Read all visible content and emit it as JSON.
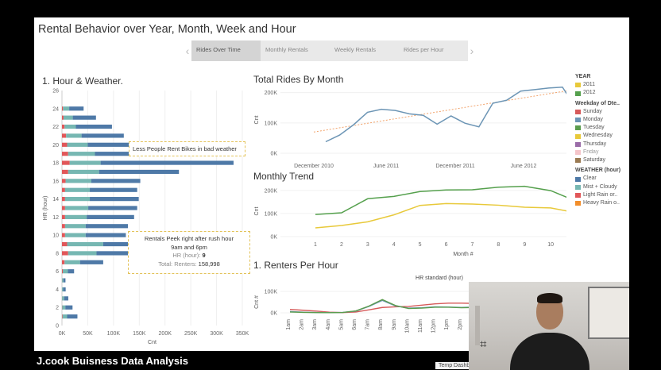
{
  "dashboard": {
    "title": "Rental Behavior over Year, Month, Week and Hour",
    "tabs": [
      {
        "label": "Rides Over Time",
        "active": true
      },
      {
        "label": "Monthly Rentals",
        "active": false
      },
      {
        "label": "Weekly Rentals",
        "active": false
      },
      {
        "label": "Rides per Hour",
        "active": false
      }
    ]
  },
  "sections": {
    "hour_weather": "1. Hour & Weather.",
    "total_rides": "Total Rides By Month",
    "monthly_trend": "Monthly Trend",
    "renters_per_hour": "1. Renters Per Hour"
  },
  "legend": {
    "year_title": "YEAR",
    "years": [
      {
        "label": "2011",
        "color": "#e8c93a"
      },
      {
        "label": "2012",
        "color": "#55a04d"
      }
    ],
    "weekday_title": "Weekday of Dte..",
    "weekdays": [
      {
        "label": "Sunday",
        "color": "#d65a5a"
      },
      {
        "label": "Monday",
        "color": "#6c95b5"
      },
      {
        "label": "Tuesday",
        "color": "#5b9c4d"
      },
      {
        "label": "Wednesday",
        "color": "#e8c93a"
      },
      {
        "label": "Thursday",
        "color": "#9a6ca8"
      },
      {
        "label": "Friday",
        "color": "#f0a0a8"
      },
      {
        "label": "Saturday",
        "color": "#9a7a52"
      }
    ],
    "weather_title": "WEATHER (hour)",
    "weather": [
      {
        "label": "Clear",
        "color": "#4e79a7"
      },
      {
        "label": "Mist + Cloudy",
        "color": "#76b7b2"
      },
      {
        "label": "Light Rain or..",
        "color": "#e15759"
      },
      {
        "label": "Heavy Rain o..",
        "color": "#f28e2b"
      }
    ]
  },
  "tooltips": {
    "weather_note": "Less People Rent Bikes in bad weather",
    "rush_note_line1": "Rentals Peek right after rush hour",
    "rush_note_line2": "9am and 6pm",
    "hr_label": "HR (hour):",
    "hr_value": "9",
    "total_label": "Total: Renters:",
    "total_value": "158,998"
  },
  "chart_data": [
    {
      "type": "bar",
      "orientation": "horizontal",
      "stacked": true,
      "title": "1. Hour & Weather.",
      "ylabel": "HR (hour)",
      "xlabel": "Cnt",
      "xlim": [
        0,
        350000
      ],
      "x_ticks": [
        "0K",
        "50K",
        "100K",
        "150K",
        "200K",
        "250K",
        "300K",
        "350K"
      ],
      "y_ticks": [
        "0",
        "2",
        "4",
        "6",
        "8",
        "10",
        "12",
        "14",
        "16",
        "18",
        "20",
        "22",
        "24",
        "26"
      ],
      "categories": [
        1,
        2,
        3,
        4,
        5,
        6,
        7,
        8,
        9,
        10,
        11,
        12,
        13,
        14,
        15,
        16,
        17,
        18,
        19,
        20,
        21,
        22,
        23,
        24
      ],
      "series": [
        {
          "name": "Light Rain or..",
          "values": [
            1000,
            500,
            300,
            200,
            300,
            1500,
            5000,
            12000,
            10000,
            6000,
            6000,
            6000,
            6000,
            6000,
            6000,
            7000,
            12000,
            15000,
            12000,
            10000,
            8000,
            5000,
            3000,
            2000
          ]
        },
        {
          "name": "Mist + Cloudy",
          "values": [
            9000,
            6000,
            4000,
            2000,
            2500,
            10000,
            30000,
            55000,
            70000,
            40000,
            40000,
            42000,
            45000,
            48000,
            48000,
            50000,
            60000,
            60000,
            52000,
            40000,
            30000,
            22000,
            18000,
            12000
          ]
        },
        {
          "name": "Clear",
          "values": [
            20000,
            14000,
            8000,
            5000,
            4000,
            12000,
            45000,
            90000,
            79000,
            78000,
            82000,
            92000,
            95000,
            95000,
            92000,
            95000,
            155000,
            258000,
            165000,
            105000,
            82000,
            70000,
            45000,
            28000
          ]
        }
      ]
    },
    {
      "type": "line",
      "title": "Total Rides By Month",
      "xlabel": "Month of Dteday",
      "ylabel": "Cnt",
      "ylim": [
        0,
        220000
      ],
      "y_ticks": [
        "0K",
        "100K",
        "200K"
      ],
      "x_ticks": [
        "December 2010",
        "June 2011",
        "December 2011",
        "June 2012",
        "December 2012"
      ],
      "series": [
        {
          "name": "Cnt",
          "values": [
            38000,
            60000,
            94000,
            135000,
            145000,
            141000,
            130000,
            125000,
            96000,
            123000,
            99000,
            87000,
            165000,
            175000,
            205000,
            210000,
            215000,
            218000,
            148000,
            117000
          ]
        },
        {
          "name": "Trend",
          "values": [
            70000,
            225000
          ]
        }
      ]
    },
    {
      "type": "line",
      "title": "Monthly Trend",
      "xlabel": "Month #",
      "ylabel": "Cnt",
      "ylim": [
        0,
        220000
      ],
      "y_ticks": [
        "0K",
        "100K",
        "200K"
      ],
      "categories": [
        "1",
        "2",
        "3",
        "4",
        "5",
        "6",
        "7",
        "8",
        "9",
        "10",
        "11",
        "12"
      ],
      "series": [
        {
          "name": "2011",
          "values": [
            38000,
            48000,
            64000,
            94000,
            135000,
            143000,
            141000,
            136000,
            127000,
            124000,
            103000,
            87000
          ]
        },
        {
          "name": "2012",
          "values": [
            96000,
            103000,
            164000,
            174000,
            195000,
            202000,
            203000,
            214000,
            218000,
            199000,
            152000,
            123000
          ]
        }
      ]
    },
    {
      "type": "line",
      "title": "HR standard (hour)",
      "ylabel": "Cnt #",
      "y_ticks": [
        "0K",
        "100K"
      ],
      "categories": [
        "1am",
        "2am",
        "3am",
        "4am",
        "5am",
        "6am",
        "7am",
        "8am",
        "9am",
        "10am",
        "11am",
        "12pm",
        "1pm",
        "2pm",
        "3pm",
        "4pm"
      ],
      "series": [
        {
          "name": "Sunday",
          "values": [
            16000,
            12000,
            8000,
            3000,
            1000,
            4000,
            14000,
            25000,
            28000,
            30000,
            36000,
            42000,
            45000,
            45000,
            44000,
            44000
          ]
        },
        {
          "name": "Monday",
          "values": [
            6000,
            3000,
            1500,
            1000,
            2000,
            8000,
            30000,
            58000,
            32000,
            22000,
            24000,
            28000,
            27000,
            25000,
            27000,
            33000
          ]
        },
        {
          "name": "Tuesday",
          "values": [
            4000,
            2000,
            1000,
            800,
            1500,
            9000,
            32000,
            62000,
            34000,
            20000,
            22000,
            26000,
            26000,
            24000,
            25000,
            32000
          ]
        }
      ]
    }
  ],
  "webcam": {
    "hash_glyph": "⌗"
  },
  "caption": "J.cook Buisness Data Analysis",
  "temp_tab": "Temp Dashbo"
}
